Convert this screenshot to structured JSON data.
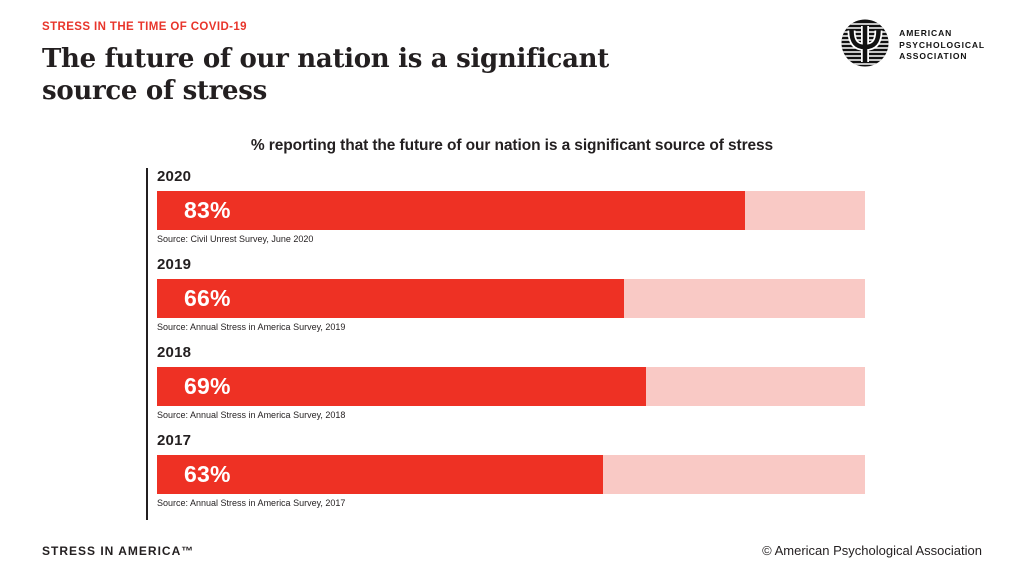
{
  "header": {
    "eyebrow": "STRESS IN THE TIME OF COVID-19",
    "title_line1": "The future of our nation is a significant",
    "title_line2": "source of stress",
    "logo": {
      "icon": "apa-psi-logo-icon",
      "org_line1": "AMERICAN",
      "org_line2": "PSYCHOLOGICAL",
      "org_line3": "ASSOCIATION"
    }
  },
  "chart": {
    "subtitle": "% reporting that the future of our nation is a significant source of stress",
    "rows": [
      {
        "year": "2020",
        "value": 83,
        "value_label": "83%",
        "source": "Source: Civil Unrest Survey, June 2020"
      },
      {
        "year": "2019",
        "value": 66,
        "value_label": "66%",
        "source": "Source: Annual Stress in America Survey, 2019"
      },
      {
        "year": "2018",
        "value": 69,
        "value_label": "69%",
        "source": "Source: Annual Stress in America Survey, 2018"
      },
      {
        "year": "2017",
        "value": 63,
        "value_label": "63%",
        "source": "Source: Annual Stress in America Survey, 2017"
      }
    ]
  },
  "chart_data": {
    "type": "bar",
    "orientation": "horizontal",
    "title": "% reporting that the future of our nation is a significant source of stress",
    "categories": [
      "2020",
      "2019",
      "2018",
      "2017"
    ],
    "values": [
      83,
      66,
      69,
      63
    ],
    "value_labels": [
      "83%",
      "66%",
      "69%",
      "63%"
    ],
    "xlim": [
      0,
      100
    ],
    "grid": false,
    "legend": "none",
    "bar_color": "#ee3124",
    "track_color": "#f9c9c5",
    "annotations": [
      "Source: Civil Unrest Survey, June 2020",
      "Source: Annual Stress in America Survey, 2019",
      "Source: Annual Stress in America Survey, 2018",
      "Source: Annual Stress in America Survey, 2017"
    ]
  },
  "footer": {
    "left": "STRESS IN AMERICA™",
    "right": "© American Psychological Association"
  },
  "colors": {
    "accent_red": "#e8352b",
    "bar_red": "#ee3124",
    "bar_track_pink": "#f9c9c5",
    "ink": "#231f20",
    "background": "#ffffff"
  }
}
